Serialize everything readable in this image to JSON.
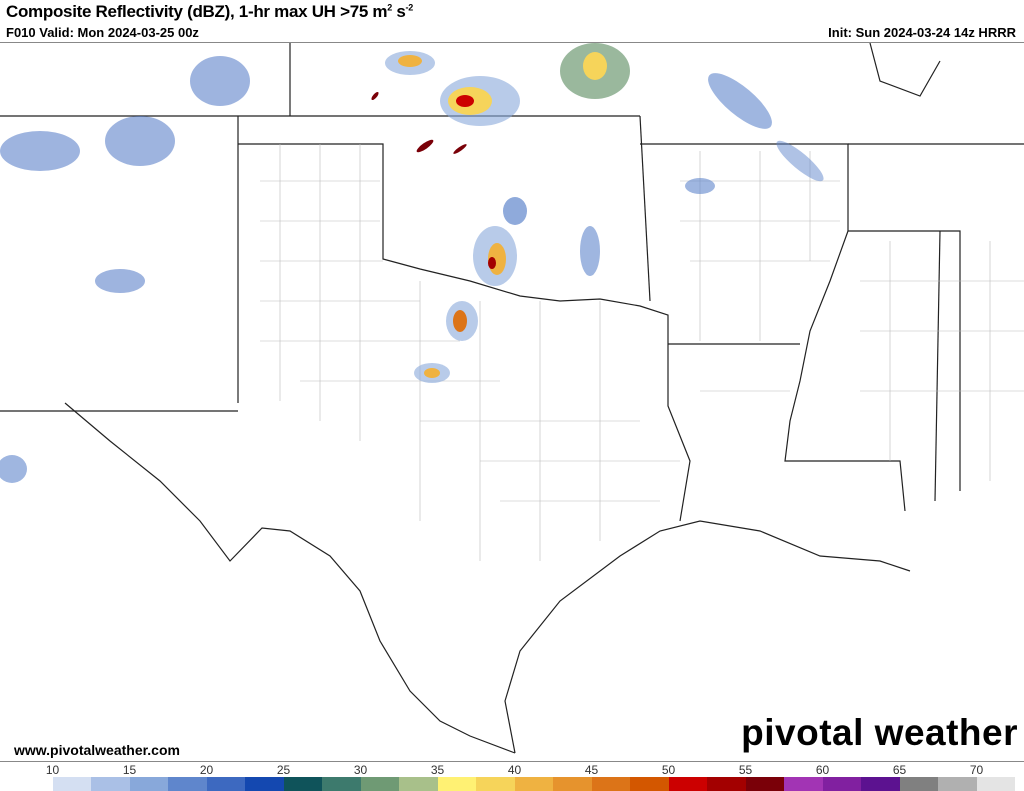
{
  "header": {
    "title": "Composite Reflectivity (dBZ), 1-hr max UH >75 m",
    "title_sup1": "2",
    "title_mid": " s",
    "title_sup2": "-2",
    "valid": "F010 Valid: Mon 2024-03-25 00z",
    "init": "Init: Sun 2024-03-24 14z HRRR"
  },
  "footer": {
    "url": "www.pivotalweather.com",
    "logo_text": "pivotal weather"
  },
  "colorbar": {
    "ticks": [
      "10",
      "15",
      "20",
      "25",
      "30",
      "35",
      "40",
      "45",
      "50",
      "55",
      "60",
      "65",
      "70"
    ],
    "colors": [
      "#ffffff",
      "#d4dff2",
      "#aac0e6",
      "#88a8da",
      "#5f86cc",
      "#3d69c0",
      "#1448b0",
      "#0f535a",
      "#3d7a6d",
      "#6f9a74",
      "#a8c08a",
      "#fff173",
      "#f6d45a",
      "#efb241",
      "#e6932d",
      "#dc7418",
      "#d35700",
      "#cc0000",
      "#a30000",
      "#7a0008",
      "#a234b4",
      "#8120a0",
      "#5c1290",
      "#808080",
      "#b0b0b0",
      "#e4e4e4"
    ]
  }
}
